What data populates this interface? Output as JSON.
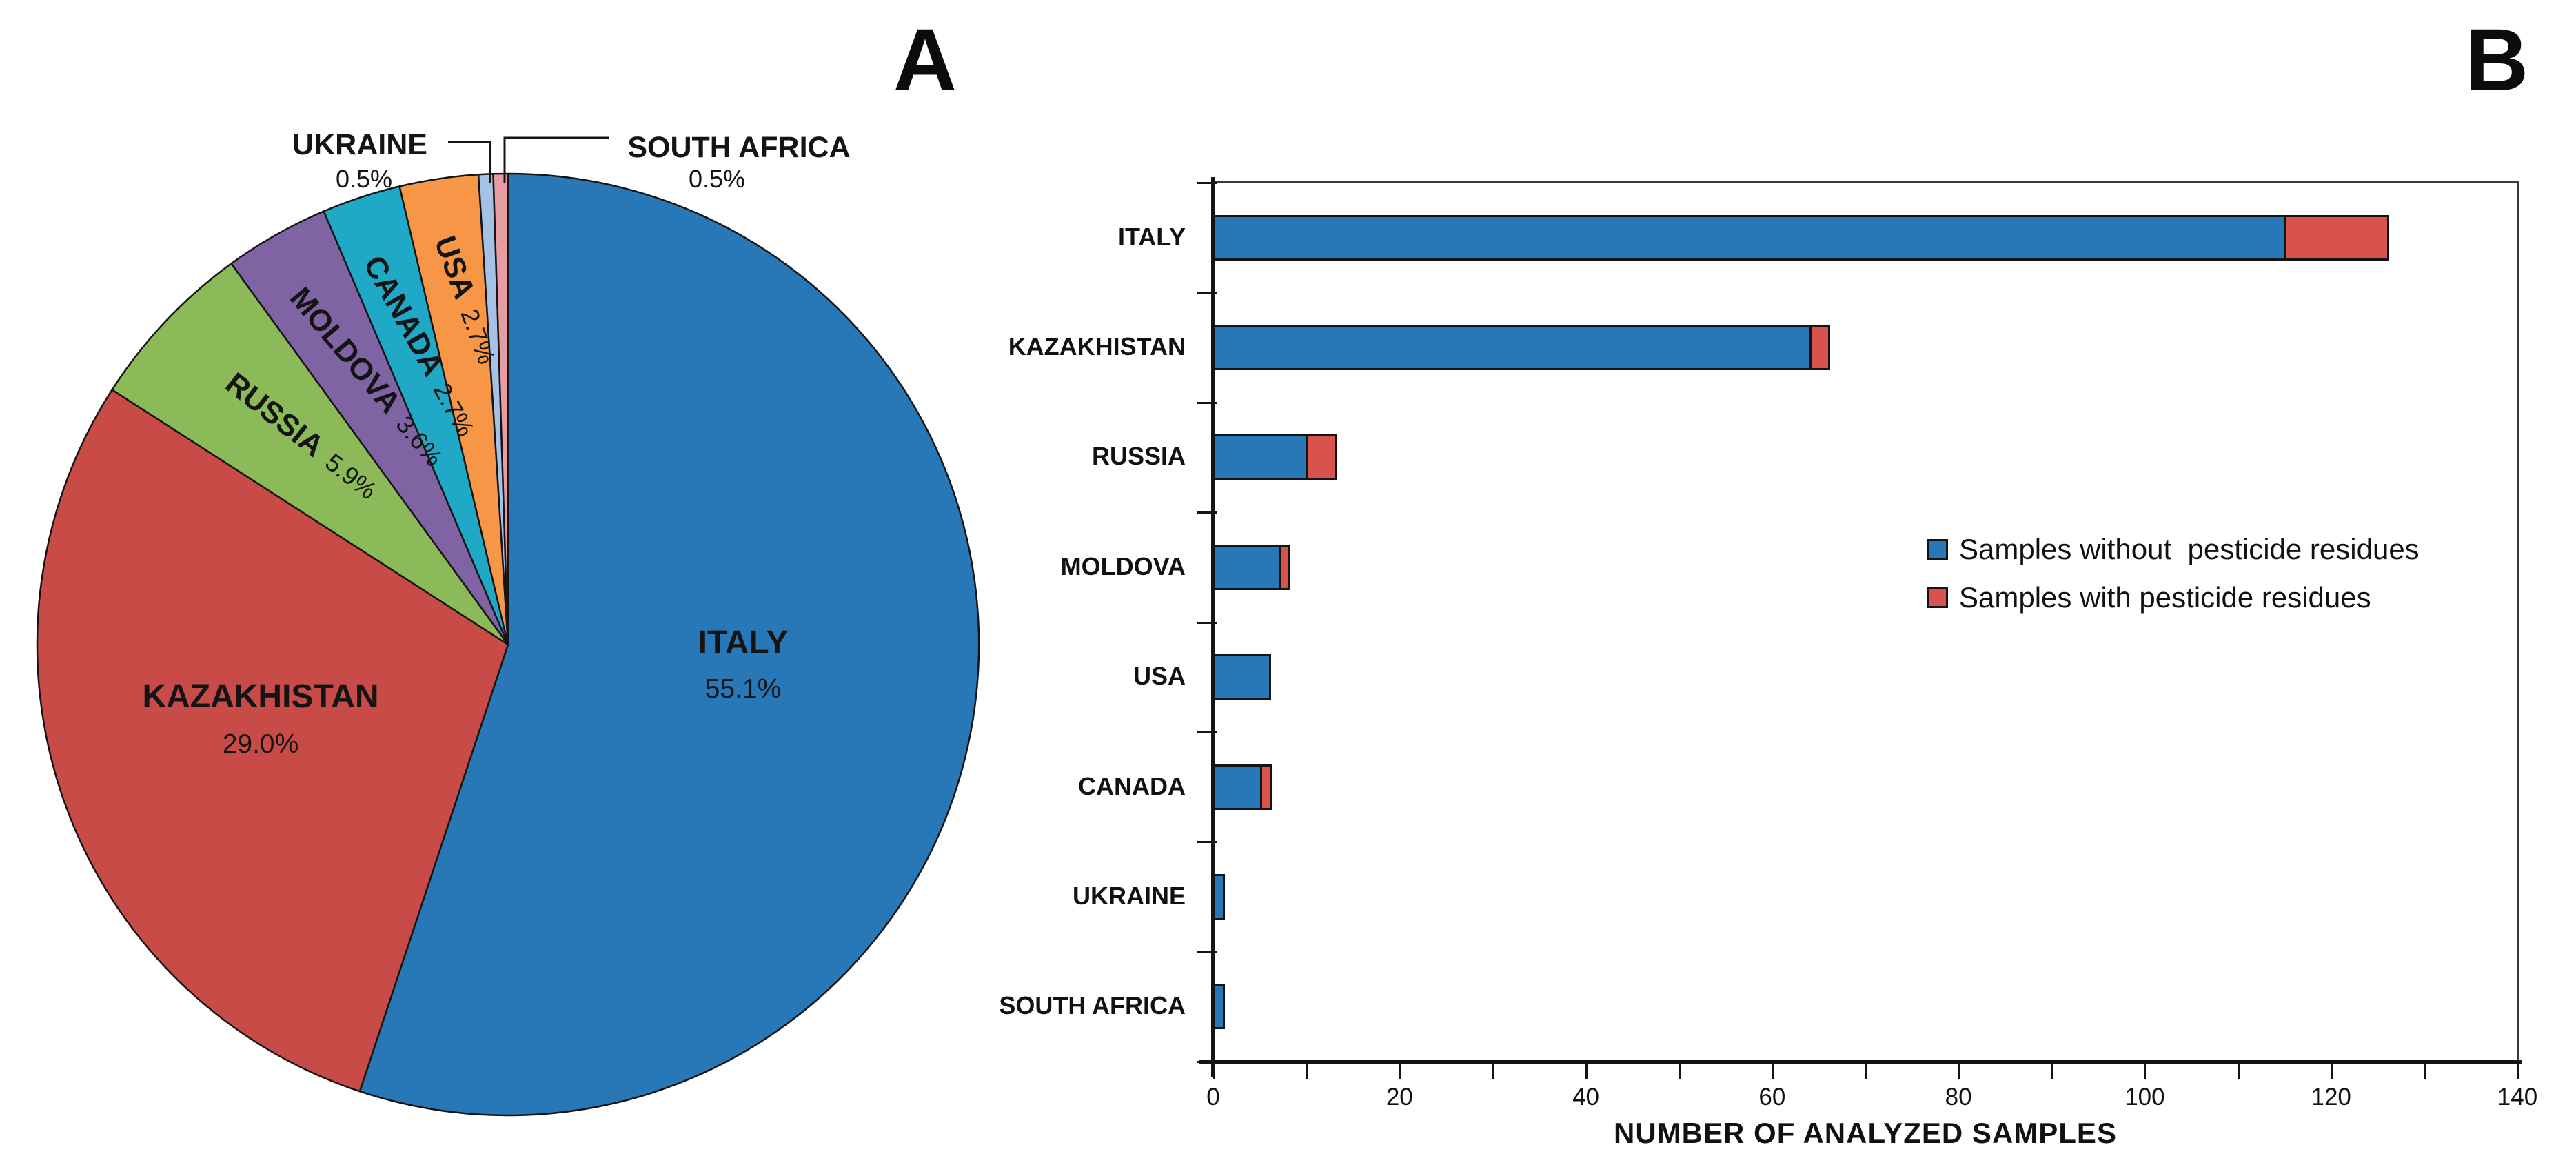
{
  "panels": {
    "a_letter": "A",
    "b_letter": "B"
  },
  "colors": {
    "blue": "#2878B8",
    "red_pie": "#C84B48",
    "red_bar": "#D8524E",
    "green": "#8DBA58",
    "purple": "#7F63A2",
    "teal": "#1FA9C6",
    "orange": "#F79646",
    "periwinkle": "#A6C1E6",
    "pink": "#E79CA2",
    "outline": "#141414"
  },
  "chart_data": [
    {
      "type": "pie",
      "panel": "A",
      "start_angle_deg": 0,
      "direction": "clockwise",
      "slices": [
        {
          "label": "ITALY",
          "pct": 55.1,
          "pct_label": "55.1%",
          "color_key": "blue"
        },
        {
          "label": "KAZAKHISTAN",
          "pct": 29.0,
          "pct_label": "29.0%",
          "color_key": "red_pie"
        },
        {
          "label": "RUSSIA",
          "pct": 5.9,
          "pct_label": "5.9%",
          "color_key": "green"
        },
        {
          "label": "MOLDOVA",
          "pct": 3.6,
          "pct_label": "3.6%",
          "color_key": "purple"
        },
        {
          "label": "CANADA",
          "pct": 2.7,
          "pct_label": "2.7%",
          "color_key": "teal"
        },
        {
          "label": "USA",
          "pct": 2.7,
          "pct_label": "2.7%",
          "color_key": "orange"
        },
        {
          "label": "UKRAINE",
          "pct": 0.5,
          "pct_label": "0.5%",
          "color_key": "periwinkle"
        },
        {
          "label": "SOUTH AFRICA",
          "pct": 0.5,
          "pct_label": "0.5%",
          "color_key": "pink"
        }
      ]
    },
    {
      "type": "bar",
      "panel": "B",
      "orientation": "horizontal",
      "stacked": true,
      "categories": [
        "ITALY",
        "KAZAKHISTAN",
        "RUSSIA",
        "MOLDOVA",
        "USA",
        "CANADA",
        "UKRAINE",
        "SOUTH AFRICA"
      ],
      "series": [
        {
          "name": "Samples without  pesticide residues",
          "color_key": "blue",
          "values": [
            115,
            64,
            10,
            7,
            6,
            5,
            1,
            1
          ]
        },
        {
          "name": "Samples with pesticide residues",
          "color_key": "red_bar",
          "values": [
            11,
            2,
            3,
            1,
            0,
            1,
            0,
            0
          ]
        }
      ],
      "xlabel": "NUMBER OF ANALYZED SAMPLES",
      "xlim": [
        0,
        140
      ],
      "xticks": [
        0,
        20,
        40,
        60,
        80,
        100,
        120,
        140
      ],
      "minor_tick_step": 10,
      "grid": false,
      "legend_position": "middle-right"
    }
  ]
}
